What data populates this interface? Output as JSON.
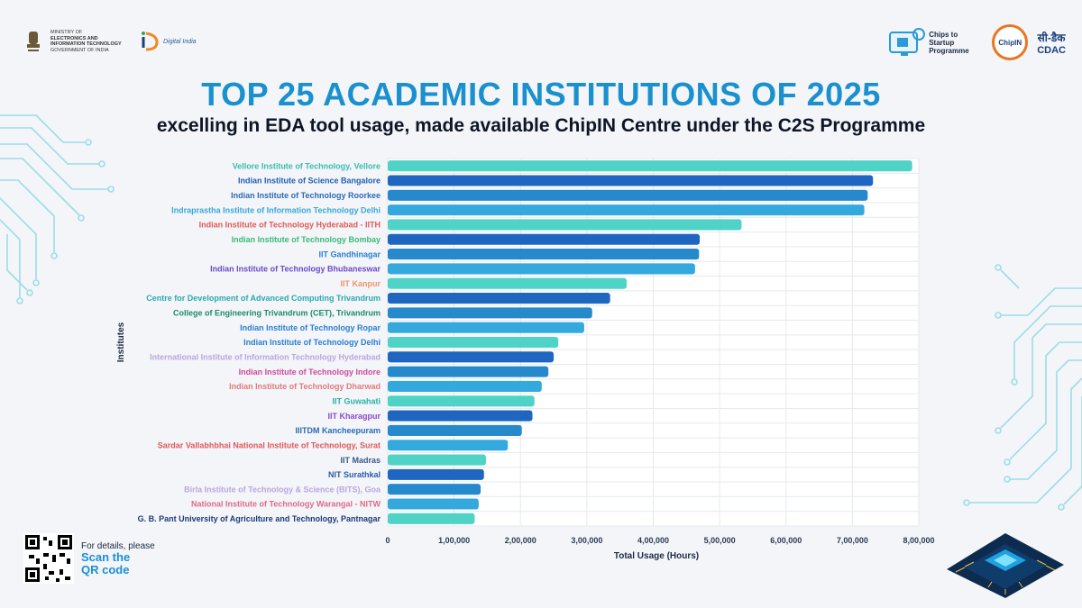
{
  "header": {
    "ministry_line1": "MINISTRY OF",
    "ministry_line2": "ELECTRONICS AND",
    "ministry_line3": "INFORMATION TECHNOLOGY",
    "ministry_line4": "GOVERNMENT OF INDIA",
    "digital_india": "Digital India",
    "c2s_line1": "Chips to Startup",
    "c2s_line2": "Programme",
    "chipin": "ChipIN",
    "cdac_hindi": "सी-डैक",
    "cdac_en": "CDAC"
  },
  "title": "TOP 25 ACADEMIC INSTITUTIONS OF 2025",
  "subtitle": "excelling in EDA tool usage, made available ChipIN Centre under the C2S Programme",
  "chart_data": {
    "type": "bar",
    "orientation": "horizontal",
    "xlabel": "Total Usage (Hours)",
    "ylabel": "Institutes",
    "xlim": [
      0,
      800000
    ],
    "xticks": [
      0,
      100000,
      200000,
      300000,
      400000,
      500000,
      600000,
      700000,
      800000
    ],
    "xtick_labels": [
      "0",
      "1,00,000",
      "2,00,000",
      "3,00,000",
      "4,00,000",
      "5,00,000",
      "6,00,000",
      "7,00,000",
      "8,00,000"
    ],
    "grid": true,
    "categories": [
      "Vellore Institute of Technology, Vellore",
      "Indian Institute of Science Bangalore",
      "Indian Institute of Technology Roorkee",
      "Indraprastha Institute of Information Technology Delhi",
      "Indian Institute of Technology Hyderabad - IITH",
      "Indian Institute of Technology Bombay",
      "IIT Gandhinagar",
      "Indian Institute of Technology Bhubaneswar",
      "IIT Kanpur",
      "Centre for Development of Advanced Computing Trivandrum",
      "College of Engineering Trivandrum (CET), Trivandrum",
      "Indian Institute of Technology Ropar",
      "Indian Institute of Technology Delhi",
      "International Institute of Information Technology Hyderabad",
      "Indian Institute of Technology Indore",
      "Indian Institute of Technology Dharwad",
      "IIT Guwahati",
      "IIT Kharagpur",
      "IIITDM Kancheepuram",
      "Sardar Vallabhbhai National Institute of Technology, Surat",
      "IIT Madras",
      "NIT Surathkal",
      "Birla Institute of Technology & Science (BITS), Goa",
      "National Institute of Technology Warangal - NITW",
      "G. B. Pant University of Agriculture and Technology, Pantnagar"
    ],
    "values": [
      790000,
      731000,
      723000,
      718000,
      533000,
      470000,
      469000,
      463000,
      360000,
      335000,
      308000,
      296000,
      257000,
      250000,
      242000,
      232000,
      221000,
      218000,
      202000,
      181000,
      148000,
      145000,
      140000,
      137000,
      131000
    ],
    "bar_colors": [
      "#4fd3c6",
      "#1f66c0",
      "#2689cc",
      "#33a9dd",
      "#4fd3c6",
      "#1f66c0",
      "#2689cc",
      "#33a9dd",
      "#4fd3c6",
      "#1f66c0",
      "#2689cc",
      "#33a9dd",
      "#4fd3c6",
      "#1f66c0",
      "#2689cc",
      "#33a9dd",
      "#4fd3c6",
      "#1f66c0",
      "#2689cc",
      "#33a9dd",
      "#4fd3c6",
      "#1f66c0",
      "#2689cc",
      "#33a9dd",
      "#4fd3c6"
    ],
    "label_colors": [
      "#3bbcb0",
      "#1f5fb0",
      "#2a6bb5",
      "#3aa8d8",
      "#e05a5a",
      "#3aba7a",
      "#2a7fd4",
      "#6a4ac8",
      "#f0956a",
      "#2aaab0",
      "#1e8a6a",
      "#2a7fd4",
      "#2a7fd4",
      "#b9a6e0",
      "#d04a9a",
      "#e07a7a",
      "#2ab0a8",
      "#8a4ad0",
      "#2a6bb5",
      "#e05a5a",
      "#3a5a8a",
      "#2a5aa5",
      "#b9a6e0",
      "#e06a8a",
      "#1f3a7a"
    ]
  },
  "qr": {
    "line1": "For details, please",
    "line2": "Scan the",
    "line3": "QR code"
  }
}
